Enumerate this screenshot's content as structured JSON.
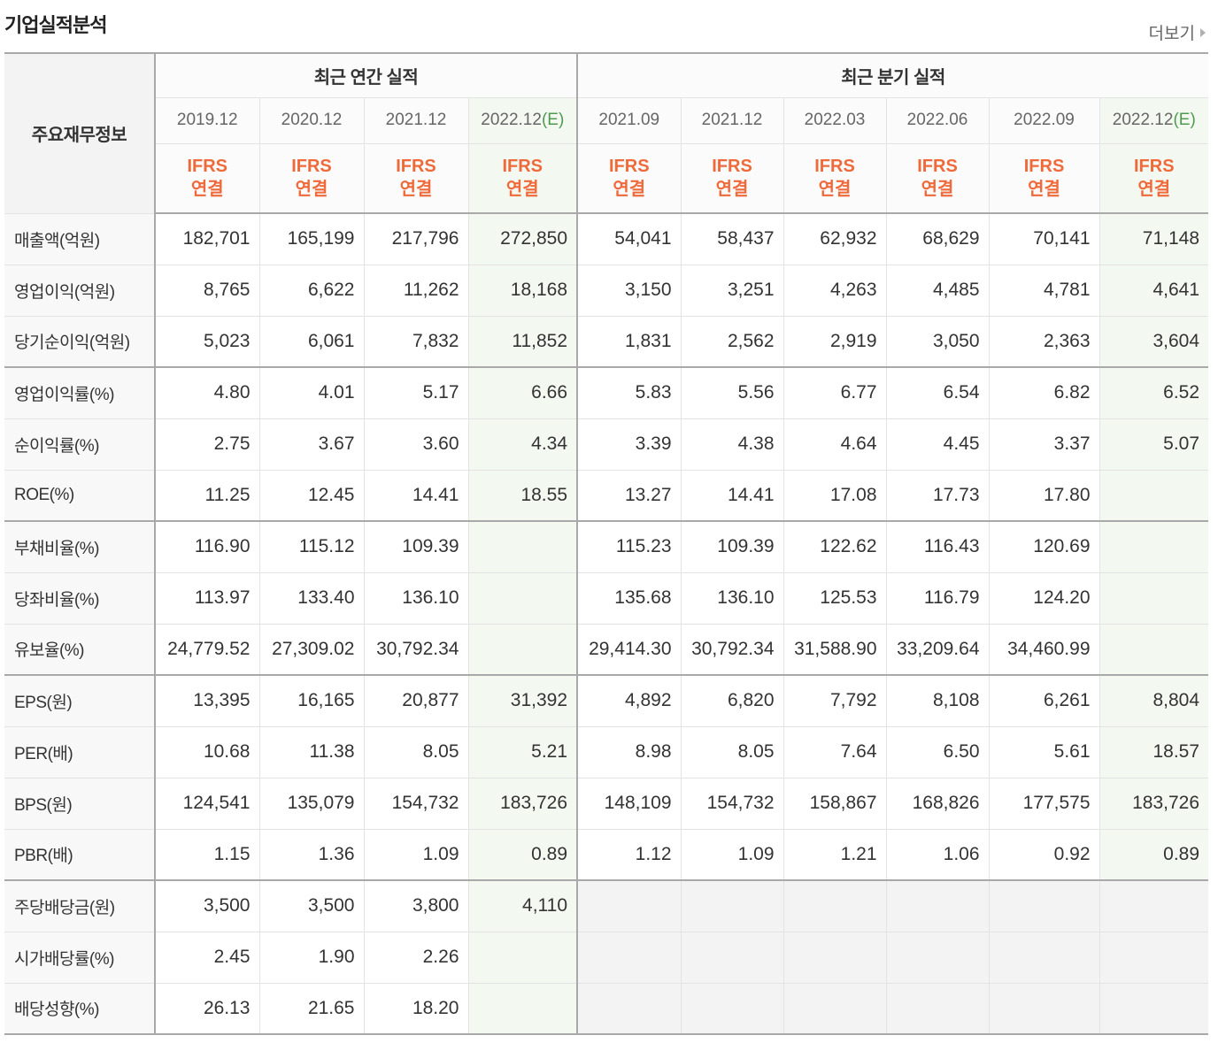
{
  "page": {
    "title": "기업실적분석",
    "more_link": "더보기"
  },
  "icons": {
    "more_arrow": "caret-right-icon"
  },
  "colors": {
    "ifrs_text": "#ef6a3a",
    "estimate_text": "#4f9a4f",
    "estimate_bg": "#f3f9f1",
    "no_data_bg": "#f3f3f3"
  },
  "table": {
    "corner_label": "주요재무정보",
    "annual_group_label": "최근 연간 실적",
    "quarterly_group_label": "최근 분기 실적",
    "periods": [
      {
        "date": "2019.12"
      },
      {
        "date": "2020.12"
      },
      {
        "date": "2021.12"
      },
      {
        "date": "2022.12",
        "estimate": "(E)"
      },
      {
        "date": "2021.09"
      },
      {
        "date": "2021.12"
      },
      {
        "date": "2022.03"
      },
      {
        "date": "2022.06"
      },
      {
        "date": "2022.09"
      },
      {
        "date": "2022.12",
        "estimate": "(E)"
      }
    ],
    "accounting": [
      {
        "standard": "IFRS",
        "basis": "연결"
      },
      {
        "standard": "IFRS",
        "basis": "연결"
      },
      {
        "standard": "IFRS",
        "basis": "연결"
      },
      {
        "standard": "IFRS",
        "basis": "연결"
      },
      {
        "standard": "IFRS",
        "basis": "연결"
      },
      {
        "standard": "IFRS",
        "basis": "연결"
      },
      {
        "standard": "IFRS",
        "basis": "연결"
      },
      {
        "standard": "IFRS",
        "basis": "연결"
      },
      {
        "standard": "IFRS",
        "basis": "연결"
      },
      {
        "standard": "IFRS",
        "basis": "연결"
      }
    ],
    "groups": [
      {
        "rows": [
          {
            "label": "매출액(억원)",
            "values": [
              "182,701",
              "165,199",
              "217,796",
              "272,850",
              "54,041",
              "58,437",
              "62,932",
              "68,629",
              "70,141",
              "71,148"
            ]
          },
          {
            "label": "영업이익(억원)",
            "values": [
              "8,765",
              "6,622",
              "11,262",
              "18,168",
              "3,150",
              "3,251",
              "4,263",
              "4,485",
              "4,781",
              "4,641"
            ]
          },
          {
            "label": "당기순이익(억원)",
            "values": [
              "5,023",
              "6,061",
              "7,832",
              "11,852",
              "1,831",
              "2,562",
              "2,919",
              "3,050",
              "2,363",
              "3,604"
            ]
          }
        ]
      },
      {
        "rows": [
          {
            "label": "영업이익률(%)",
            "values": [
              "4.80",
              "4.01",
              "5.17",
              "6.66",
              "5.83",
              "5.56",
              "6.77",
              "6.54",
              "6.82",
              "6.52"
            ]
          },
          {
            "label": "순이익률(%)",
            "values": [
              "2.75",
              "3.67",
              "3.60",
              "4.34",
              "3.39",
              "4.38",
              "4.64",
              "4.45",
              "3.37",
              "5.07"
            ]
          },
          {
            "label": "ROE(%)",
            "values": [
              "11.25",
              "12.45",
              "14.41",
              "18.55",
              "13.27",
              "14.41",
              "17.08",
              "17.73",
              "17.80",
              ""
            ]
          }
        ]
      },
      {
        "rows": [
          {
            "label": "부채비율(%)",
            "values": [
              "116.90",
              "115.12",
              "109.39",
              "",
              "115.23",
              "109.39",
              "122.62",
              "116.43",
              "120.69",
              ""
            ]
          },
          {
            "label": "당좌비율(%)",
            "values": [
              "113.97",
              "133.40",
              "136.10",
              "",
              "135.68",
              "136.10",
              "125.53",
              "116.79",
              "124.20",
              ""
            ]
          },
          {
            "label": "유보율(%)",
            "values": [
              "24,779.52",
              "27,309.02",
              "30,792.34",
              "",
              "29,414.30",
              "30,792.34",
              "31,588.90",
              "33,209.64",
              "34,460.99",
              ""
            ]
          }
        ]
      },
      {
        "rows": [
          {
            "label": "EPS(원)",
            "values": [
              "13,395",
              "16,165",
              "20,877",
              "31,392",
              "4,892",
              "6,820",
              "7,792",
              "8,108",
              "6,261",
              "8,804"
            ]
          },
          {
            "label": "PER(배)",
            "values": [
              "10.68",
              "11.38",
              "8.05",
              "5.21",
              "8.98",
              "8.05",
              "7.64",
              "6.50",
              "5.61",
              "18.57"
            ]
          },
          {
            "label": "BPS(원)",
            "values": [
              "124,541",
              "135,079",
              "154,732",
              "183,726",
              "148,109",
              "154,732",
              "158,867",
              "168,826",
              "177,575",
              "183,726"
            ]
          },
          {
            "label": "PBR(배)",
            "values": [
              "1.15",
              "1.36",
              "1.09",
              "0.89",
              "1.12",
              "1.09",
              "1.21",
              "1.06",
              "0.92",
              "0.89"
            ]
          }
        ]
      },
      {
        "rows": [
          {
            "label": "주당배당금(원)",
            "values": [
              "3,500",
              "3,500",
              "3,800",
              "4,110",
              "",
              "",
              "",
              "",
              "",
              ""
            ]
          },
          {
            "label": "시가배당률(%)",
            "values": [
              "2.45",
              "1.90",
              "2.26",
              "",
              "",
              "",
              "",
              "",
              "",
              ""
            ]
          },
          {
            "label": "배당성향(%)",
            "values": [
              "26.13",
              "21.65",
              "18.20",
              "",
              "",
              "",
              "",
              "",
              "",
              ""
            ]
          }
        ]
      }
    ]
  }
}
